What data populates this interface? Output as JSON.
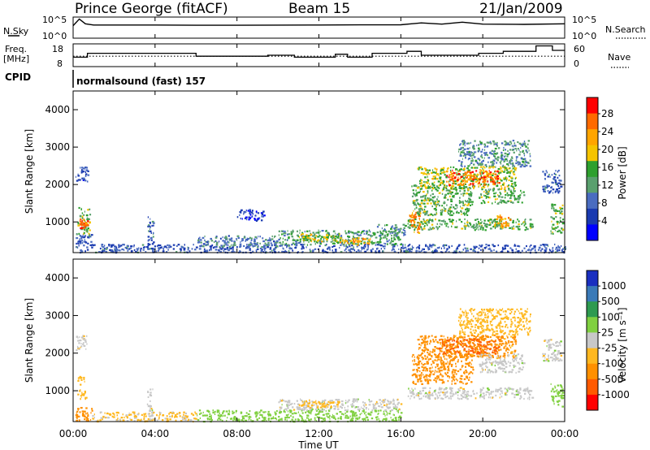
{
  "header": {
    "station": "Prince George (fitACF)",
    "beam": "Beam 15",
    "date": "21/Jan/2009"
  },
  "panels": {
    "nsky": {
      "label": "N.Sky",
      "yticks": [
        "10^5",
        "10^0"
      ],
      "right_label": "N.Search",
      "right_yticks": [
        "10^5",
        "10^0"
      ]
    },
    "freq": {
      "label": "Freq.",
      "unit": "[MHz]",
      "yticks": [
        "18",
        "8"
      ],
      "right_label": "Nave",
      "right_yticks": [
        "60",
        "0"
      ]
    },
    "cpid": {
      "label": "CPID",
      "text": "normalsound (fast) 157"
    }
  },
  "colorbars": {
    "power": {
      "label": "Power [dB]",
      "ticks": [
        "28",
        "24",
        "20",
        "16",
        "12",
        "8",
        "4"
      ],
      "colors": [
        "#ff0000",
        "#ff6a00",
        "#ffa500",
        "#f5c400",
        "#2ea02e",
        "#5aa06e",
        "#4a6cc0",
        "#1a3ab0",
        "#0000ff"
      ]
    },
    "velocity": {
      "label": "Velocity [m s⁻¹]",
      "ticks": [
        "1000",
        "500",
        "100",
        "25",
        "-25",
        "-100",
        "-500",
        "-1000"
      ],
      "colors": [
        "#1a2fc0",
        "#3a7ab8",
        "#2e9a50",
        "#80d040",
        "#c8c8c8",
        "#ffb820",
        "#ff9000",
        "#ff5a00",
        "#ff0000"
      ]
    }
  },
  "axes": {
    "ylabel": "Slant Range [km]",
    "xlabel": "Time UT",
    "yticks": [
      "1000",
      "2000",
      "3000",
      "4000"
    ],
    "xticks": [
      "00:00",
      "04:00",
      "08:00",
      "12:00",
      "16:00",
      "20:00",
      "00:00"
    ]
  },
  "chart_data": [
    {
      "type": "line",
      "name": "nsky-nsearch",
      "title": "N.Sky / N.Search",
      "x_hours": [
        0,
        0.3,
        0.6,
        1,
        2,
        4,
        6,
        8,
        10,
        12,
        14,
        16,
        17,
        18,
        19,
        20,
        22,
        24
      ],
      "series": [
        {
          "name": "N.Sky",
          "values": [
            1000,
            50000,
            3000,
            1500,
            1500,
            1500,
            1300,
            1300,
            1400,
            1500,
            1600,
            1700,
            5000,
            2500,
            8000,
            2500,
            2200,
            3000
          ]
        },
        {
          "name": "N.Search",
          "values": [
            0,
            0,
            0,
            0,
            0,
            0,
            0,
            0,
            0,
            0,
            0,
            0,
            0,
            0,
            0,
            0,
            0,
            0
          ]
        }
      ],
      "ylim": [
        1,
        100000
      ],
      "yscale": "log"
    },
    {
      "type": "line",
      "name": "freq-nave",
      "title": "Freq. / Nave",
      "series": [
        {
          "name": "Freq (MHz)",
          "x": [
            0,
            0.7,
            0.7,
            6.0,
            6.0,
            9.5,
            9.5,
            10.8,
            10.8,
            12.8,
            12.8,
            13.4,
            13.4,
            14.6,
            14.6,
            16.3,
            16.3,
            17.0,
            17.0,
            19.8,
            19.8,
            21.0,
            21.0,
            22.6,
            22.6,
            23.4,
            23.4,
            24
          ],
          "y": [
            12,
            12,
            14,
            14,
            12.5,
            12.5,
            13,
            13,
            12,
            12,
            13.5,
            13.5,
            12,
            12,
            14,
            14,
            15,
            15,
            13,
            13,
            14,
            14,
            15,
            15,
            17.8,
            17.8,
            15.5,
            15.5
          ]
        },
        {
          "name": "Nave",
          "x": [
            0,
            24
          ],
          "y": [
            27,
            27
          ]
        }
      ],
      "ylim": [
        8,
        18
      ],
      "y2lim": [
        0,
        60
      ]
    },
    {
      "type": "heatmap",
      "name": "power",
      "ylabel": "Slant Range [km]",
      "xlabel": "Time UT",
      "xlim": [
        0,
        24
      ],
      "ylim": [
        180,
        4500
      ],
      "colorbar_label": "Power [dB]",
      "regions": [
        {
          "t": [
            0.1,
            0.9
          ],
          "r": [
            200,
            700
          ],
          "db": 6
        },
        {
          "t": [
            0.2,
            0.8
          ],
          "r": [
            700,
            1400
          ],
          "db": 14
        },
        {
          "t": [
            0.3,
            0.7
          ],
          "r": [
            850,
            1100
          ],
          "db": 26
        },
        {
          "t": [
            0.1,
            0.7
          ],
          "r": [
            2100,
            2500
          ],
          "db": 5
        },
        {
          "t": [
            0.9,
            24
          ],
          "r": [
            200,
            420
          ],
          "db": 6
        },
        {
          "t": [
            3.6,
            3.9
          ],
          "r": [
            300,
            1200
          ],
          "db": 6
        },
        {
          "t": [
            6,
            10
          ],
          "r": [
            350,
            650
          ],
          "db": 9
        },
        {
          "t": [
            8,
            9.3
          ],
          "r": [
            1050,
            1350
          ],
          "db": 4
        },
        {
          "t": [
            10,
            16
          ],
          "r": [
            400,
            800
          ],
          "db": 12
        },
        {
          "t": [
            11,
            13
          ],
          "r": [
            500,
            700
          ],
          "db": 18
        },
        {
          "t": [
            13,
            14.5
          ],
          "r": [
            400,
            600
          ],
          "db": 22
        },
        {
          "t": [
            14.8,
            16.3
          ],
          "r": [
            650,
            950
          ],
          "db": 10
        },
        {
          "t": [
            16.3,
            22.4
          ],
          "r": [
            800,
            1100
          ],
          "db": 14
        },
        {
          "t": [
            16.4,
            16.9
          ],
          "r": [
            700,
            1300
          ],
          "db": 24
        },
        {
          "t": [
            16.5,
            19.5
          ],
          "r": [
            1200,
            2000
          ],
          "db": 14
        },
        {
          "t": [
            16.8,
            21.6
          ],
          "r": [
            1900,
            2500
          ],
          "db": 17
        },
        {
          "t": [
            18.2,
            20.8
          ],
          "r": [
            2000,
            2400
          ],
          "db": 26
        },
        {
          "t": [
            19.8,
            22.0
          ],
          "r": [
            1500,
            1900
          ],
          "db": 14
        },
        {
          "t": [
            20.5,
            21.4
          ],
          "r": [
            900,
            1200
          ],
          "db": 22
        },
        {
          "t": [
            18.8,
            22.3
          ],
          "r": [
            2500,
            3200
          ],
          "db": 10
        },
        {
          "t": [
            22.9,
            23.8
          ],
          "r": [
            1800,
            2400
          ],
          "db": 6
        },
        {
          "t": [
            23.3,
            23.9
          ],
          "r": [
            700,
            1500
          ],
          "db": 14
        }
      ]
    },
    {
      "type": "heatmap",
      "name": "velocity",
      "ylabel": "Slant Range [km]",
      "xlabel": "Time UT",
      "xlim": [
        0,
        24
      ],
      "ylim": [
        180,
        4500
      ],
      "colorbar_label": "Velocity [m s⁻¹]",
      "regions": [
        {
          "t": [
            0.1,
            0.9
          ],
          "r": [
            200,
            600
          ],
          "v": -300
        },
        {
          "t": [
            0.2,
            0.6
          ],
          "r": [
            800,
            1400
          ],
          "v": -60
        },
        {
          "t": [
            0.1,
            0.7
          ],
          "r": [
            2100,
            2500
          ],
          "v": 0
        },
        {
          "t": [
            0.9,
            6
          ],
          "r": [
            200,
            450
          ],
          "v": -40
        },
        {
          "t": [
            3.6,
            3.9
          ],
          "r": [
            300,
            1100
          ],
          "v": 0
        },
        {
          "t": [
            6,
            16
          ],
          "r": [
            200,
            500
          ],
          "v": 60
        },
        {
          "t": [
            10,
            16
          ],
          "r": [
            500,
            800
          ],
          "v": 0
        },
        {
          "t": [
            11,
            13
          ],
          "r": [
            550,
            750
          ],
          "v": -60
        },
        {
          "t": [
            16.3,
            22.4
          ],
          "r": [
            800,
            1100
          ],
          "v": 0
        },
        {
          "t": [
            16.5,
            19.5
          ],
          "r": [
            1200,
            2000
          ],
          "v": -200
        },
        {
          "t": [
            16.8,
            21.6
          ],
          "r": [
            1900,
            2500
          ],
          "v": -150
        },
        {
          "t": [
            17.8,
            20.8
          ],
          "r": [
            2000,
            2400
          ],
          "v": -600
        },
        {
          "t": [
            19.8,
            22.0
          ],
          "r": [
            1500,
            2000
          ],
          "v": 0
        },
        {
          "t": [
            18.8,
            22.3
          ],
          "r": [
            2500,
            3200
          ],
          "v": -60
        },
        {
          "t": [
            22.9,
            23.8
          ],
          "r": [
            1800,
            2400
          ],
          "v": 0
        },
        {
          "t": [
            23.3,
            23.9
          ],
          "r": [
            600,
            1200
          ],
          "v": 60
        }
      ]
    }
  ]
}
